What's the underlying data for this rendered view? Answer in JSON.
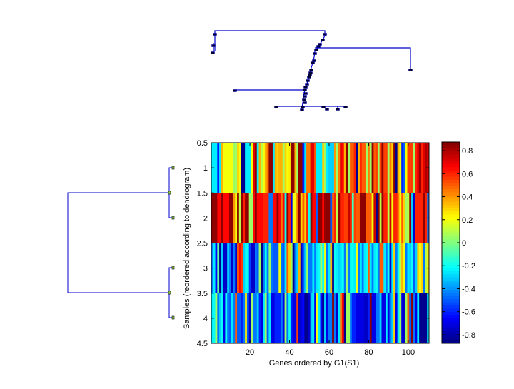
{
  "chart_data": {
    "type": "heatmap",
    "title": "",
    "xlabel": "Genes ordered by G1(S1)",
    "ylabel": "Samples (reordered according to dendrogram)",
    "x_range": [
      0.5,
      110.5
    ],
    "y_range": [
      0.5,
      4.5
    ],
    "x_ticks": [
      20,
      40,
      60,
      80,
      100
    ],
    "x_tick_labels": [
      "20",
      "40",
      "60",
      "80",
      "100"
    ],
    "y_ticks": [
      0.5,
      1,
      1.5,
      2,
      2.5,
      3,
      3.5,
      4,
      4.5
    ],
    "y_tick_labels": [
      "0.5",
      "1",
      "1.5",
      "2",
      "2.5",
      "3",
      "3.5",
      "4",
      "4.5"
    ],
    "colormap": "jet",
    "color_range": [
      -0.875,
      0.875
    ],
    "colorbar_ticks": [
      0.8,
      0.6,
      0.4,
      0.2,
      0,
      -0.2,
      -0.4,
      -0.6,
      -0.8
    ],
    "colorbar_tick_labels": [
      "0.8",
      "0.6",
      "0.4",
      "0.2",
      "0",
      "-0.2",
      "-0.4",
      "-0.6",
      "-0.8"
    ],
    "n_genes": 110,
    "rows": [
      {
        "sample": 1,
        "values": [
          -0.25,
          -0.25,
          -0.25,
          -0.6,
          -0.25,
          0.35,
          0.2,
          0.2,
          0.2,
          0.2,
          0.2,
          0.05,
          0.05,
          0.3,
          0.2,
          -0.85,
          -0.85,
          -0.25,
          -0.25,
          -0.25,
          0.2,
          0.7,
          0.85,
          -0.25,
          0.35,
          0.1,
          0.2,
          0.35,
          0.45,
          0.85,
          0.85,
          -0.25,
          0.35,
          0.3,
          0.35,
          0.35,
          0.05,
          0.3,
          0.2,
          0.25,
          0.85,
          0.85,
          0.35,
          0.05,
          0.85,
          0.85,
          -0.6,
          -0.25,
          0.45,
          0.45,
          0.7,
          0.7,
          0.5,
          -0.25,
          -0.25,
          -0.25,
          0.3,
          0.05,
          -0.25,
          -0.3,
          -0.3,
          -0.3,
          0.4,
          0.05,
          0.45,
          0.7,
          0.65,
          0.35,
          0.85,
          0.05,
          0.5,
          0.5,
          0.6,
          -0.85,
          0.35,
          0.6,
          0.5,
          0.5,
          0.05,
          0.45,
          0.05,
          0.85,
          0.5,
          0.55,
          0.05,
          0.55,
          0.85,
          0.55,
          0.55,
          0.05,
          0.45,
          0.3,
          0.85,
          -0.85,
          0.35,
          0.2,
          -0.6,
          -0.5,
          0.2,
          0.55,
          0.55,
          0.55,
          0.05,
          0.6,
          0.7,
          0.85,
          0.6,
          0.7,
          0.8,
          0.7
        ]
      },
      {
        "sample": 2,
        "values": [
          0.85,
          0.85,
          0.85,
          0.65,
          0.65,
          0.85,
          0.65,
          0.65,
          0.65,
          0.85,
          0.85,
          0.4,
          0.2,
          0.85,
          0.1,
          0.85,
          0.6,
          0.85,
          0.85,
          0.05,
          0.05,
          0.65,
          0.85,
          0.65,
          0.65,
          0.65,
          0.6,
          0.6,
          0.6,
          -0.45,
          -0.45,
          0.65,
          0.65,
          0.85,
          0.65,
          0.45,
          0.65,
          -0.2,
          0.85,
          0.6,
          -0.7,
          0.2,
          0.2,
          0.45,
          0.85,
          0.3,
          0.5,
          0.3,
          0.6,
          -0.2,
          0.85,
          0.65,
          0.65,
          -0.5,
          0.85,
          0.85,
          0.65,
          0.85,
          0.85,
          0.85,
          -0.5,
          0.5,
          0.6,
          0.1,
          0.85,
          0.6,
          0.6,
          0.55,
          0.55,
          0.75,
          0.6,
          -0.1,
          0.55,
          0.5,
          0.5,
          0.85,
          0.85,
          0.85,
          0.5,
          0.5,
          0.5,
          0.2,
          0.75,
          -0.85,
          0.85,
          0.1,
          0.85,
          0.6,
          0.6,
          0.1,
          0.75,
          0.2,
          0.6,
          0.6,
          0.45,
          0.2,
          0.5,
          0.3,
          0.05,
          0.1,
          0.85,
          -0.3,
          -0.75,
          0.6,
          0.6,
          0.6,
          0.6,
          0.85,
          0.6,
          -0.45
        ]
      },
      {
        "sample": 3,
        "values": [
          -0.45,
          -0.25,
          -0.65,
          -0.05,
          -0.85,
          -0.3,
          -0.75,
          -0.75,
          -0.3,
          -0.45,
          -0.75,
          -0.45,
          -0.75,
          0.5,
          0.65,
          0.55,
          -0.3,
          -0.2,
          -0.2,
          -0.55,
          -0.75,
          -0.75,
          -0.45,
          -0.5,
          0.05,
          -0.85,
          -0.45,
          -0.2,
          -0.45,
          0.05,
          -0.45,
          -0.5,
          -0.5,
          -0.5,
          0.2,
          -0.45,
          -0.5,
          -0.25,
          0.5,
          0.3,
          0.05,
          -0.85,
          -0.45,
          -0.3,
          0.35,
          -0.75,
          -0.5,
          -0.3,
          0.05,
          -0.45,
          -0.45,
          -0.25,
          -0.45,
          -0.25,
          -0.2,
          0.05,
          -0.2,
          0.2,
          -0.45,
          -0.25,
          0.35,
          -0.85,
          -0.2,
          -0.25,
          -0.3,
          -0.25,
          -0.2,
          -0.45,
          0.05,
          -0.45,
          -0.2,
          -0.2,
          -0.25,
          0.2,
          -0.45,
          -0.25,
          -0.45,
          -0.25,
          -0.2,
          0.5,
          -0.25,
          -0.45,
          -0.25,
          -0.2,
          -0.45,
          0.5,
          0.5,
          -0.25,
          -0.45,
          -0.2,
          -0.75,
          -0.25,
          0.3,
          -0.45,
          -0.2,
          0.1,
          0.35,
          0.2,
          -0.45,
          -0.25,
          -0.3,
          -0.2,
          -0.5,
          -0.3,
          0.3,
          0.2,
          0.3,
          -0.45,
          0.1,
          0.25
        ]
      },
      {
        "sample": 4,
        "values": [
          -0.25,
          -0.2,
          0.05,
          -0.45,
          -0.3,
          -0.2,
          -0.7,
          -0.2,
          -0.45,
          -0.5,
          -0.25,
          -0.45,
          0.5,
          -0.5,
          -0.5,
          -0.6,
          -0.45,
          0.25,
          -0.5,
          -0.75,
          0.05,
          -0.45,
          -0.45,
          -0.3,
          -0.6,
          -0.7,
          -0.25,
          0.05,
          -0.5,
          -0.25,
          -0.7,
          -0.7,
          -0.6,
          -0.6,
          -0.6,
          -0.45,
          -0.7,
          0.05,
          -0.45,
          -0.2,
          -0.6,
          -0.7,
          -0.7,
          0.55,
          -0.75,
          -0.7,
          -0.65,
          -0.85,
          -0.85,
          -0.75,
          -0.3,
          -0.25,
          -0.7,
          0.2,
          -0.25,
          -0.65,
          -0.85,
          -0.3,
          -0.7,
          -0.45,
          -0.45,
          0.85,
          -0.45,
          -0.75,
          -0.25,
          0.45,
          0.65,
          -0.85,
          0.05,
          0.05,
          -0.45,
          -0.6,
          -0.6,
          -0.7,
          -0.7,
          -0.7,
          -0.7,
          -0.75,
          -0.75,
          -0.6,
          0.85,
          -0.7,
          -0.7,
          -0.45,
          -0.45,
          -0.3,
          -0.7,
          -0.7,
          -0.25,
          -0.7,
          -0.45,
          -0.3,
          0.3,
          -0.7,
          -0.25,
          0.05,
          -0.7,
          -0.75,
          0.05,
          0.5,
          -0.5,
          0.85,
          -0.45,
          -0.7,
          -0.25,
          -0.85,
          -0.85,
          -0.85,
          -0.85,
          -0.25
        ]
      }
    ],
    "sample_dendrogram": {
      "orientation": "left",
      "leaves": [
        1,
        2,
        3,
        4
      ],
      "merges": [
        {
          "left": 1,
          "right": 2,
          "height": 0.05
        },
        {
          "left": 3,
          "right": 4,
          "height": 0.05
        },
        {
          "left": "1-2",
          "right": "3-4",
          "height": 1.0
        }
      ]
    },
    "gene_dendrogram": {
      "orientation": "top",
      "description": "Chain-like (nearly sequential) clustering of genes; one long branch to gene ~101, long branch ~12, top merge left group ~2"
    }
  }
}
